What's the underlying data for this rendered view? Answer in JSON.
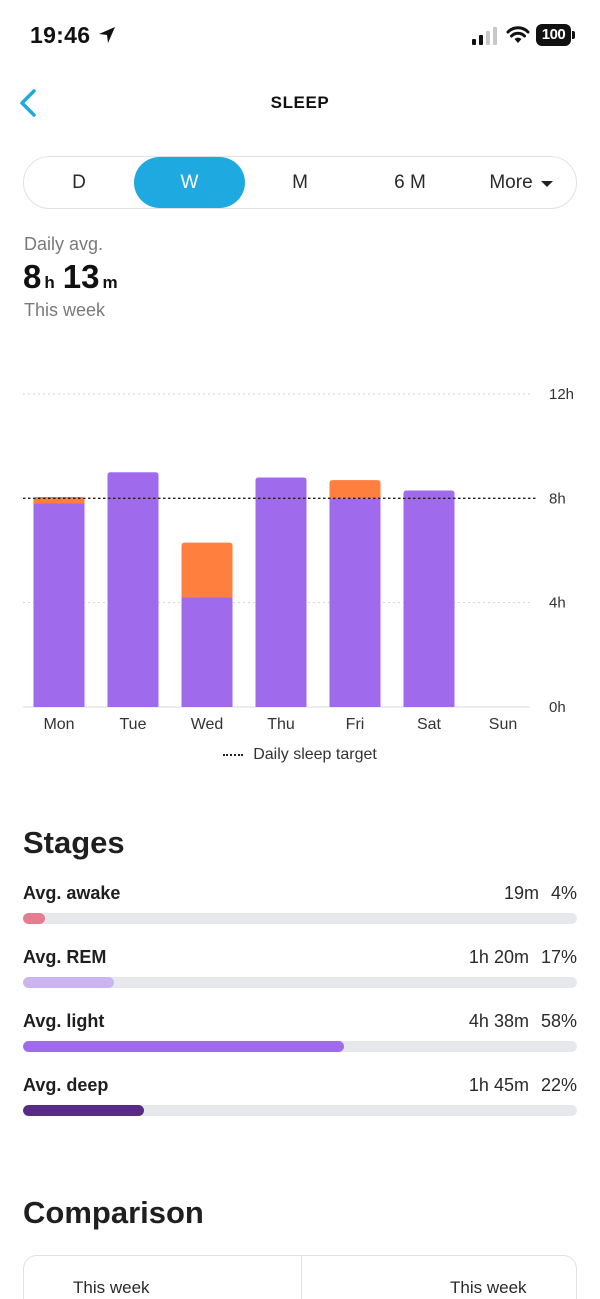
{
  "status_bar": {
    "time": "19:46",
    "battery": "100",
    "icons": [
      "location-arrow-icon",
      "signal-icon",
      "wifi-icon",
      "battery-icon"
    ]
  },
  "header": {
    "title": "SLEEP",
    "back_icon": "chevron-left-icon"
  },
  "tabs": [
    {
      "label": "D",
      "active": false
    },
    {
      "label": "W",
      "active": true
    },
    {
      "label": "M",
      "active": false
    },
    {
      "label": "6 M",
      "active": false
    },
    {
      "label": "More",
      "active": false
    }
  ],
  "summary": {
    "label": "Daily avg.",
    "hours": "8",
    "hours_unit": "h",
    "minutes": "13",
    "minutes_unit": "m",
    "period": "This week"
  },
  "chart_data": {
    "type": "bar",
    "stacked": true,
    "categories": [
      "Mon",
      "Tue",
      "Wed",
      "Thu",
      "Fri",
      "Sat",
      "Sun"
    ],
    "series": [
      {
        "color": "#9f6bec",
        "values": [
          7.8,
          9.0,
          4.2,
          8.8,
          8.0,
          8.3,
          0
        ]
      },
      {
        "color": "#ff7f3e",
        "values": [
          0.25,
          0,
          2.1,
          0,
          0.7,
          0,
          0
        ]
      }
    ],
    "y_ticks": [
      "12h",
      "8h",
      "4h",
      "0h"
    ],
    "y_tick_values": [
      12,
      8,
      4,
      0
    ],
    "ylim": [
      0,
      12
    ],
    "target": 8,
    "legend": "Daily sleep target",
    "axis_position": "right",
    "grid": true
  },
  "stages": {
    "title": "Stages",
    "items": [
      {
        "name": "Avg. awake",
        "duration": "19m",
        "percent": "4%",
        "fraction": 0.04,
        "color": "#e57d91"
      },
      {
        "name": "Avg. REM",
        "duration": "1h 20m",
        "percent": "17%",
        "fraction": 0.165,
        "color": "#cbb5f1"
      },
      {
        "name": "Avg. light",
        "duration": "4h 38m",
        "percent": "58%",
        "fraction": 0.58,
        "color": "#9f6bec"
      },
      {
        "name": "Avg. deep",
        "duration": "1h 45m",
        "percent": "22%",
        "fraction": 0.218,
        "color": "#5a2a87"
      }
    ]
  },
  "comparison": {
    "title": "Comparison",
    "left_label": "This week",
    "right_label": "This week"
  },
  "colors": {
    "accent": "#1fa9e1",
    "sleep_purple": "#9f6bec",
    "awake_orange": "#ff7f3e"
  }
}
